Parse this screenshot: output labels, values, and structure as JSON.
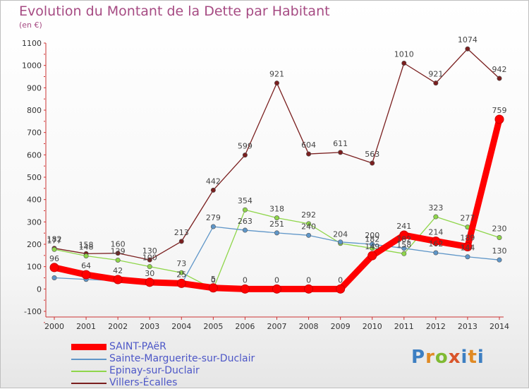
{
  "header": {
    "title": "Evolution du Montant de la Dette par Habitant",
    "unit": "(en €)"
  },
  "logo": {
    "text": "Proxiti"
  },
  "chart_data": {
    "type": "line",
    "title": "Evolution du Montant de la Dette par Habitant",
    "ylabel": "(en €)",
    "xlabel": "",
    "x": [
      "2000",
      "2001",
      "2002",
      "2003",
      "2004",
      "2005",
      "2006",
      "2007",
      "2008",
      "2009",
      "2010",
      "2011",
      "2012",
      "2013",
      "2014"
    ],
    "ylim": [
      -100,
      1100
    ],
    "yticks": [
      -100,
      0,
      100,
      200,
      300,
      400,
      500,
      600,
      700,
      800,
      900,
      1000,
      1100
    ],
    "grid": false,
    "legend_position": "bottom-left",
    "series": [
      {
        "name": "SAINT-PAëR",
        "color": "#ff0000",
        "values": [
          96,
          64,
          42,
          30,
          25,
          5,
          0,
          0,
          0,
          0,
          149,
          241,
          214,
          189,
          759
        ]
      },
      {
        "name": "Sainte-Marguerite-sur-Duclair",
        "color": "#5f96c8",
        "values": [
          50,
          43,
          37,
          30,
          22,
          279,
          263,
          251,
          240,
          210,
          200,
          182,
          162,
          144,
          130
        ]
      },
      {
        "name": "Epinay-sur-Duclair",
        "color": "#8fd64a",
        "values": [
          177,
          148,
          129,
          100,
          73,
          0,
          354,
          318,
          292,
          204,
          182,
          158,
          323,
          277,
          230
        ]
      },
      {
        "name": "Villers-Écalles",
        "color": "#7a1f1f",
        "values": [
          182,
          158,
          160,
          130,
          213,
          442,
          599,
          921,
          604,
          611,
          563,
          1010,
          921,
          1074,
          942
        ]
      }
    ],
    "data_labels": {
      "SAINT-PAëR": [
        "96",
        "64",
        "42",
        "30",
        "25",
        "5",
        "0",
        "0",
        "0",
        "0",
        "149",
        "241",
        "214",
        "189",
        "759"
      ],
      "Sainte-Marguerite-sur-Duclair": [
        "",
        "",
        "",
        "",
        "",
        "279",
        "263",
        "251",
        "240",
        "",
        "200",
        "182",
        "162",
        "144",
        "130"
      ],
      "Epinay-sur-Duclair": [
        "177",
        "148",
        "129",
        "100",
        "73",
        "0",
        "354",
        "318",
        "292",
        "204",
        "182",
        "158",
        "323",
        "277",
        "230"
      ],
      "Villers-Écalles": [
        "182",
        "158",
        "160",
        "130",
        "213",
        "442",
        "599",
        "921",
        "604",
        "611",
        "563",
        "1010",
        "921",
        "1074",
        "942"
      ]
    }
  }
}
